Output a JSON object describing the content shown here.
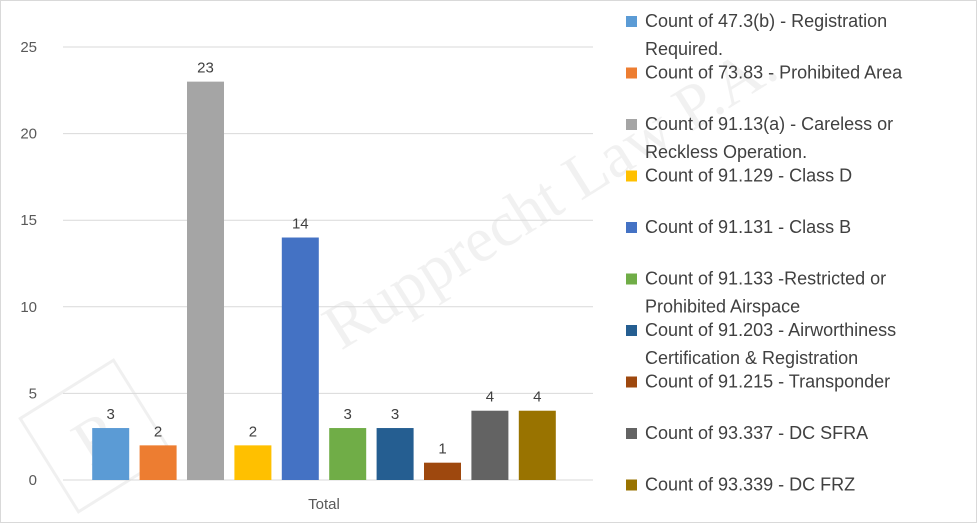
{
  "chart_data": {
    "type": "bar",
    "categories": [
      "Total"
    ],
    "ylim": [
      0,
      25
    ],
    "yticks": [
      0,
      5,
      10,
      15,
      20,
      25
    ],
    "grid": true,
    "legend_position": "right",
    "series": [
      {
        "name": "Count of 47.3(b) - Registration Required.",
        "values": [
          3
        ],
        "color": "#5b9bd5"
      },
      {
        "name": "Count of 73.83 - Prohibited Area",
        "values": [
          2
        ],
        "color": "#ed7d31"
      },
      {
        "name": "Count of 91.13(a) - Careless or Reckless Operation.",
        "values": [
          23
        ],
        "color": "#a5a5a5"
      },
      {
        "name": "Count of 91.129 - Class D",
        "values": [
          2
        ],
        "color": "#ffc000"
      },
      {
        "name": "Count of 91.131 - Class B",
        "values": [
          14
        ],
        "color": "#4472c4"
      },
      {
        "name": "Count of 91.133 -Restricted or Prohibited Airspace",
        "values": [
          3
        ],
        "color": "#70ad47"
      },
      {
        "name": "Count of 91.203 - Airworthiness Certification & Registration",
        "values": [
          3
        ],
        "color": "#255e91"
      },
      {
        "name": "Count of 91.215 - Transponder",
        "values": [
          1
        ],
        "color": "#9e480e"
      },
      {
        "name": "Count of 93.337 - DC SFRA",
        "values": [
          4
        ],
        "color": "#636363"
      },
      {
        "name": "Count of 93.339 - DC FRZ",
        "values": [
          4
        ],
        "color": "#997300"
      }
    ]
  },
  "legend_lines": [
    [
      "Count of 47.3(b) - Registration",
      "Required."
    ],
    [
      "Count of 73.83 - Prohibited Area"
    ],
    [
      "Count of 91.13(a) - Careless or",
      "Reckless Operation."
    ],
    [
      "Count of 91.129 - Class D"
    ],
    [
      "Count of 91.131 - Class B"
    ],
    [
      "Count of 91.133 -Restricted or",
      "Prohibited Airspace"
    ],
    [
      "Count of 91.203 - Airworthiness",
      "Certification & Registration"
    ],
    [
      "Count of 91.215 - Transponder"
    ],
    [
      "Count of 93.337 - DC SFRA"
    ],
    [
      "Count of 93.339 - DC FRZ"
    ]
  ],
  "watermark": {
    "text": "Rupprecht Law P.A.",
    "logo_letter": "R"
  }
}
